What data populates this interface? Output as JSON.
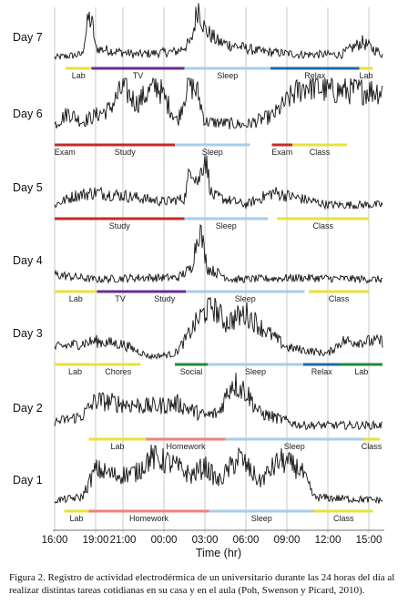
{
  "chart_data": {
    "type": "line",
    "xlabel": "Time (hr)",
    "x_ticks": [
      "16:00",
      "19:00",
      "21:00",
      "00:00",
      "03:00",
      "06:00",
      "09:00",
      "12:00",
      "15:00"
    ],
    "xlim_hours_from_start": [
      0,
      24
    ],
    "days": [
      {
        "label": "Day 7",
        "segments": [
          {
            "label": "Lab",
            "start": 0.8,
            "end": 2.7,
            "color": "#e8e23a"
          },
          {
            "label": "TV",
            "start": 2.7,
            "end": 9.5,
            "color": "#6a2c8f"
          },
          {
            "label": "Sleep",
            "start": 9.5,
            "end": 15.8,
            "color": "#a9cde8"
          },
          {
            "label": "Relax",
            "start": 15.8,
            "end": 22.3,
            "color": "#1f6aa5"
          },
          {
            "label": "Lab",
            "start": 22.3,
            "end": 23.3,
            "color": "#e8e23a"
          }
        ],
        "trace": [
          [
            0.0,
            0.1
          ],
          [
            2.0,
            0.15
          ],
          [
            2.5,
            0.75
          ],
          [
            2.8,
            0.6
          ],
          [
            3.0,
            0.25
          ],
          [
            6.0,
            0.15
          ],
          [
            9.0,
            0.2
          ],
          [
            10.0,
            0.35
          ],
          [
            10.5,
            0.95
          ],
          [
            11.0,
            0.55
          ],
          [
            12.0,
            0.35
          ],
          [
            15.0,
            0.2
          ],
          [
            18.0,
            0.15
          ],
          [
            21.0,
            0.15
          ],
          [
            22.5,
            0.35
          ],
          [
            24.0,
            0.15
          ]
        ]
      },
      {
        "label": "Day 6",
        "segments": [
          {
            "label": "Exam",
            "start": 0.0,
            "end": 1.5,
            "color": "#c62a2a"
          },
          {
            "label": "Study",
            "start": 1.5,
            "end": 8.8,
            "color": "#c62a2a"
          },
          {
            "label": "Sleep",
            "start": 8.8,
            "end": 14.3,
            "color": "#a9cde8"
          },
          {
            "label": "Exam",
            "start": 15.9,
            "end": 17.4,
            "color": "#c62a2a"
          },
          {
            "label": "Class",
            "start": 17.4,
            "end": 21.4,
            "color": "#e8e23a"
          }
        ],
        "trace": [
          [
            0.0,
            0.25
          ],
          [
            1.0,
            0.45
          ],
          [
            2.0,
            0.3
          ],
          [
            4.0,
            0.5
          ],
          [
            5.0,
            0.85
          ],
          [
            6.0,
            0.6
          ],
          [
            7.5,
            0.9
          ],
          [
            8.5,
            0.5
          ],
          [
            9.0,
            0.3
          ],
          [
            9.8,
            0.95
          ],
          [
            10.5,
            0.75
          ],
          [
            11.0,
            0.3
          ],
          [
            14.0,
            0.25
          ],
          [
            16.0,
            0.4
          ],
          [
            17.5,
            0.75
          ],
          [
            18.5,
            0.9
          ],
          [
            20.0,
            0.8
          ],
          [
            21.5,
            0.8
          ]
        ]
      },
      {
        "label": "Day 5",
        "segments": [
          {
            "label": "Study",
            "start": 0.0,
            "end": 9.5,
            "color": "#c62a2a"
          },
          {
            "label": "Sleep",
            "start": 9.5,
            "end": 15.6,
            "color": "#a9cde8"
          },
          {
            "label": "Class",
            "start": 16.3,
            "end": 23.0,
            "color": "#e8e23a"
          }
        ],
        "trace": [
          [
            0.0,
            0.15
          ],
          [
            1.5,
            0.3
          ],
          [
            3.0,
            0.35
          ],
          [
            5.0,
            0.3
          ],
          [
            8.0,
            0.2
          ],
          [
            9.5,
            0.25
          ],
          [
            10.0,
            0.8
          ],
          [
            10.5,
            0.5
          ],
          [
            11.0,
            0.95
          ],
          [
            11.5,
            0.3
          ],
          [
            14.0,
            0.15
          ],
          [
            16.0,
            0.35
          ],
          [
            20.0,
            0.15
          ],
          [
            24.0,
            0.15
          ]
        ]
      },
      {
        "label": "Day 4",
        "segments": [
          {
            "label": "Lab",
            "start": 0.0,
            "end": 3.1,
            "color": "#e8e23a"
          },
          {
            "label": "TV",
            "start": 3.1,
            "end": 6.5,
            "color": "#6a2c8f"
          },
          {
            "label": "Study",
            "start": 6.5,
            "end": 9.6,
            "color": "#6a2c8f"
          },
          {
            "label": "Sleep",
            "start": 9.6,
            "end": 18.3,
            "color": "#a9cde8"
          },
          {
            "label": "Class",
            "start": 18.6,
            "end": 23.0,
            "color": "#e8e23a"
          }
        ],
        "trace": [
          [
            0.0,
            0.2
          ],
          [
            3.0,
            0.12
          ],
          [
            6.0,
            0.15
          ],
          [
            9.0,
            0.15
          ],
          [
            10.0,
            0.3
          ],
          [
            10.6,
            0.98
          ],
          [
            11.2,
            0.3
          ],
          [
            13.0,
            0.12
          ],
          [
            18.0,
            0.15
          ],
          [
            24.0,
            0.12
          ]
        ]
      },
      {
        "label": "Day 3",
        "segments": [
          {
            "label": "Lab",
            "start": 0.0,
            "end": 3.0,
            "color": "#e8e23a"
          },
          {
            "label": "Chores",
            "start": 3.0,
            "end": 6.3,
            "color": "#e8e23a"
          },
          {
            "label": "Social",
            "start": 8.8,
            "end": 11.2,
            "color": "#1e8a3c"
          },
          {
            "label": "Sleep",
            "start": 11.2,
            "end": 18.2,
            "color": "#a9cde8"
          },
          {
            "label": "Relax",
            "start": 18.2,
            "end": 20.9,
            "color": "#1f6aa5"
          },
          {
            "label": "Lab",
            "start": 20.9,
            "end": 24.0,
            "color": "#1e8a3c"
          }
        ],
        "trace": [
          [
            0.0,
            0.2
          ],
          [
            3.0,
            0.3
          ],
          [
            5.0,
            0.25
          ],
          [
            7.0,
            0.05
          ],
          [
            8.8,
            0.1
          ],
          [
            9.5,
            0.3
          ],
          [
            10.5,
            0.65
          ],
          [
            11.5,
            0.9
          ],
          [
            12.5,
            0.6
          ],
          [
            14.0,
            0.75
          ],
          [
            15.0,
            0.55
          ],
          [
            17.0,
            0.2
          ],
          [
            20.0,
            0.1
          ],
          [
            21.0,
            0.3
          ],
          [
            24.0,
            0.3
          ]
        ]
      },
      {
        "label": "Day 2",
        "segments": [
          {
            "label": "Lab",
            "start": 2.5,
            "end": 6.7,
            "color": "#e8e23a"
          },
          {
            "label": "Homework",
            "start": 6.7,
            "end": 12.5,
            "color": "#f08080"
          },
          {
            "label": "Sleep",
            "start": 12.5,
            "end": 22.6,
            "color": "#a9cde8"
          },
          {
            "label": "Class",
            "start": 22.6,
            "end": 23.8,
            "color": "#e8e23a"
          }
        ],
        "trace": [
          [
            0.0,
            0.2
          ],
          [
            2.0,
            0.3
          ],
          [
            3.0,
            0.55
          ],
          [
            5.0,
            0.5
          ],
          [
            7.0,
            0.45
          ],
          [
            9.0,
            0.5
          ],
          [
            11.0,
            0.3
          ],
          [
            12.0,
            0.35
          ],
          [
            13.0,
            0.85
          ],
          [
            14.0,
            0.7
          ],
          [
            15.0,
            0.35
          ],
          [
            18.0,
            0.15
          ],
          [
            24.0,
            0.15
          ]
        ]
      },
      {
        "label": "Day 1",
        "segments": [
          {
            "label": "Lab",
            "start": 0.7,
            "end": 2.5,
            "color": "#e8e23a"
          },
          {
            "label": "Homework",
            "start": 2.5,
            "end": 11.3,
            "color": "#f08080"
          },
          {
            "label": "Sleep",
            "start": 11.3,
            "end": 19.0,
            "color": "#a9cde8"
          },
          {
            "label": "Class",
            "start": 19.0,
            "end": 23.3,
            "color": "#e8e23a"
          }
        ],
        "trace": [
          [
            0.0,
            0.1
          ],
          [
            2.0,
            0.15
          ],
          [
            3.0,
            0.6
          ],
          [
            4.5,
            0.5
          ],
          [
            6.0,
            0.55
          ],
          [
            7.0,
            0.8
          ],
          [
            8.5,
            0.7
          ],
          [
            10.0,
            0.5
          ],
          [
            11.0,
            0.65
          ],
          [
            12.0,
            0.4
          ],
          [
            13.5,
            0.8
          ],
          [
            15.0,
            0.4
          ],
          [
            16.5,
            0.75
          ],
          [
            18.0,
            0.6
          ],
          [
            19.0,
            0.15
          ],
          [
            24.0,
            0.1
          ]
        ]
      }
    ]
  },
  "caption": "Figura 2. Registro de actividad electrodérmica de un universitario durante las 24 horas del día al realizar distintas tareas cotidianas en su casa y en el aula (Poh, Swenson y Picard, 2010)."
}
